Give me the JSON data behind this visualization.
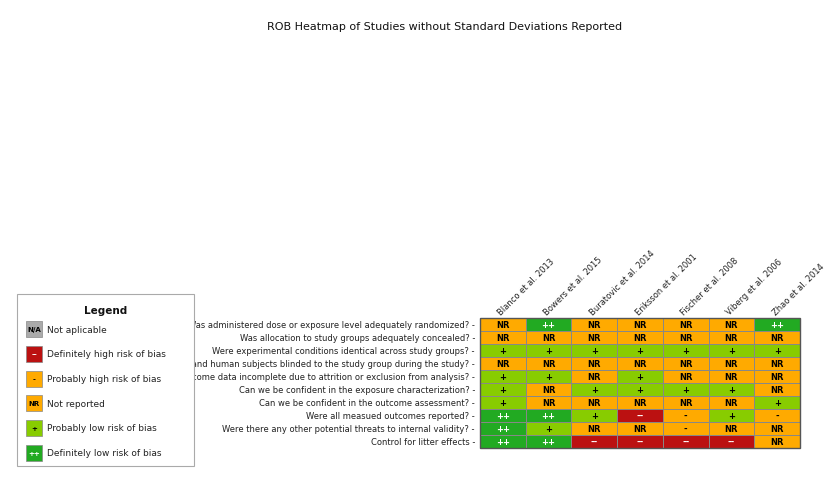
{
  "title": "ROB Heatmap of Studies without Standard Deviations Reported",
  "columns": [
    "Blanco et al. 2013",
    "Bowers et al. 2015",
    "Buratovic et al. 2014",
    "Eriksson et al. 2001",
    "Fischer et al. 2008",
    "Viberg et al. 2006",
    "Zhao et al. 2014"
  ],
  "rows": [
    "Was administered dose or exposure level adequately randomized?",
    "Was allocation to study groups adequately concealed?",
    "Were experimental conditions identical across study groups?",
    "Were the research personrel and human subjects blinded to the study group during the study?",
    "Were outcome data incomplete due to attrition or exclusion from analysis?",
    "Can we be confident in the exposure characterization?",
    "Can we be confident in the outcome assessment?",
    "Were all measued outcomes reported?",
    "Were there any other potential threats to internal validity?",
    "Control for litter effects"
  ],
  "data": [
    [
      "NR",
      "++",
      "NR",
      "NR",
      "NR",
      "NR",
      "++"
    ],
    [
      "NR",
      "NR",
      "NR",
      "NR",
      "NR",
      "NR",
      "NR"
    ],
    [
      "+",
      "+",
      "+",
      "+",
      "+",
      "+",
      "+"
    ],
    [
      "NR",
      "NR",
      "NR",
      "NR",
      "NR",
      "NR",
      "NR"
    ],
    [
      "+",
      "+",
      "NR",
      "+",
      "NR",
      "NR",
      "NR"
    ],
    [
      "+",
      "NR",
      "+",
      "+",
      "+",
      "+",
      "NR"
    ],
    [
      "+",
      "NR",
      "NR",
      "NR",
      "NR",
      "NR",
      "+"
    ],
    [
      "++",
      "++",
      "+",
      "--",
      "-",
      "+",
      "-"
    ],
    [
      "++",
      "+",
      "NR",
      "NR",
      "-",
      "NR",
      "NR"
    ],
    [
      "++",
      "++",
      "--",
      "--",
      "--",
      "--",
      "NR"
    ]
  ],
  "color_map": {
    "++": "#22aa22",
    "+": "#88cc00",
    "NR": "#ffaa00",
    "-": "#ffaa00",
    "--": "#bb1111",
    "N/A": "#aaaaaa"
  },
  "text_color_map": {
    "++": "#ffffff",
    "+": "#000000",
    "NR": "#000000",
    "-": "#000000",
    "--": "#ffffff",
    "N/A": "#000000"
  },
  "legend_items": [
    {
      "symbol": "N/A",
      "color": "#aaaaaa",
      "text_color": "#000000",
      "label": "Not aplicable"
    },
    {
      "symbol": "--",
      "color": "#bb1111",
      "text_color": "#ffffff",
      "label": "Definitely high risk of bias"
    },
    {
      "symbol": "-",
      "color": "#ffaa00",
      "text_color": "#000000",
      "label": "Probably high risk of bias"
    },
    {
      "symbol": "NR",
      "color": "#ffaa00",
      "text_color": "#000000",
      "label": "Not reported"
    },
    {
      "symbol": "+",
      "color": "#88cc00",
      "text_color": "#000000",
      "label": "Probably low risk of bias"
    },
    {
      "symbol": "++",
      "color": "#22aa22",
      "text_color": "#ffffff",
      "label": "Definitely low risk of bias"
    }
  ],
  "grid_color": "#888888",
  "background_color": "#ffffff"
}
